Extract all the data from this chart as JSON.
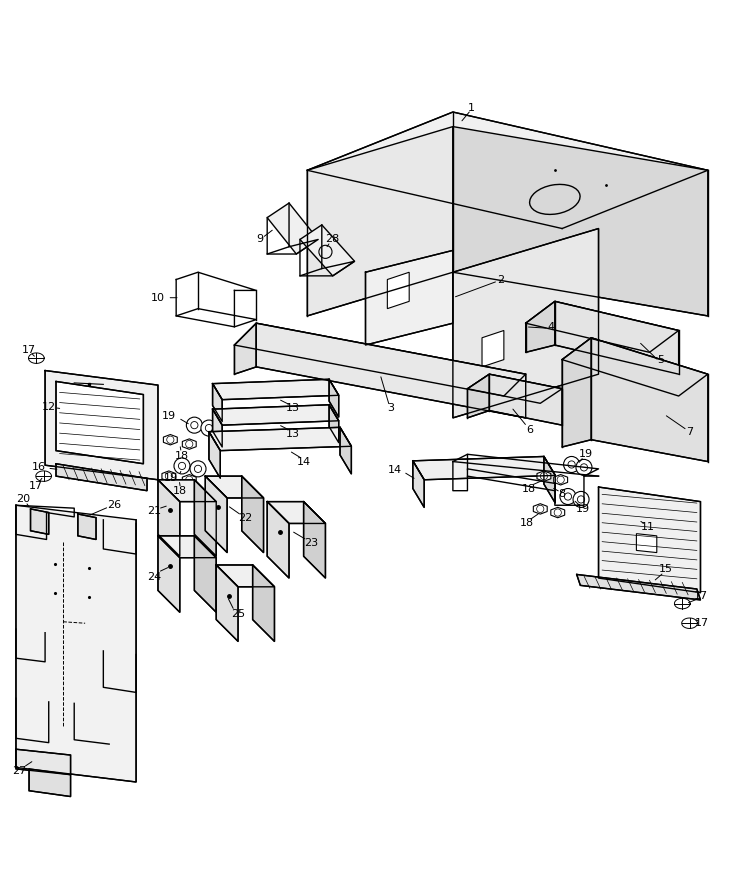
{
  "bg_color": "#ffffff",
  "line_color": "#000000",
  "fig_width": 7.31,
  "fig_height": 8.94
}
